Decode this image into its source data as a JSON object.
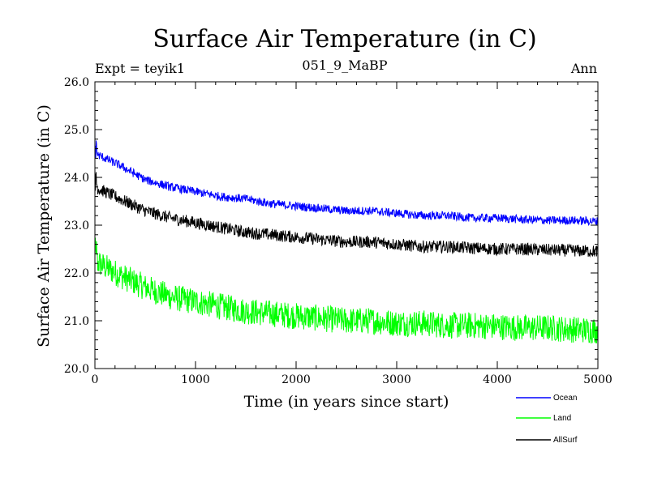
{
  "chart_data": {
    "type": "line",
    "title": "Surface Air Temperature (in C)",
    "subtitle_left": "Expt = teyik1",
    "subtitle_center": "051_9_MaBP",
    "subtitle_right": "Ann",
    "xlabel": "Time (in years since start)",
    "ylabel": "Surface Air Temperature (in C)",
    "xlim": [
      0,
      5000
    ],
    "ylim": [
      20.0,
      26.0
    ],
    "x_ticks": [
      0,
      1000,
      2000,
      3000,
      4000,
      5000
    ],
    "x_tick_labels": [
      "0",
      "1000",
      "2000",
      "3000",
      "4000",
      "5000"
    ],
    "y_ticks": [
      20.0,
      21.0,
      22.0,
      23.0,
      24.0,
      25.0,
      26.0
    ],
    "y_tick_labels": [
      "20.0",
      "21.0",
      "22.0",
      "23.0",
      "24.0",
      "25.0",
      "26.0"
    ],
    "legend_position": "bottom-right, outside plot",
    "series": [
      {
        "name": "Ocean",
        "color": "#0000ff",
        "x": [
          0,
          250,
          500,
          750,
          1000,
          1250,
          1500,
          1750,
          2000,
          2250,
          2500,
          2750,
          3000,
          3250,
          3500,
          3750,
          4000,
          4250,
          4500,
          4750,
          5000
        ],
        "values": [
          24.5,
          24.25,
          23.95,
          23.8,
          23.7,
          23.6,
          23.55,
          23.45,
          23.4,
          23.35,
          23.3,
          23.3,
          23.25,
          23.2,
          23.2,
          23.15,
          23.15,
          23.12,
          23.1,
          23.1,
          23.08
        ],
        "noise_amplitude": 0.09
      },
      {
        "name": "Land",
        "color": "#00ff00",
        "x": [
          0,
          250,
          500,
          750,
          1000,
          1250,
          1500,
          1750,
          2000,
          2250,
          2500,
          2750,
          3000,
          3250,
          3500,
          3750,
          4000,
          4250,
          4500,
          4750,
          5000
        ],
        "values": [
          22.25,
          21.95,
          21.7,
          21.5,
          21.4,
          21.3,
          21.2,
          21.15,
          21.1,
          21.05,
          21.0,
          21.0,
          20.95,
          20.95,
          20.9,
          20.9,
          20.88,
          20.85,
          20.85,
          20.82,
          20.8
        ],
        "noise_amplitude": 0.28
      },
      {
        "name": "AllSurf",
        "color": "#000000",
        "x": [
          0,
          250,
          500,
          750,
          1000,
          1250,
          1500,
          1750,
          2000,
          2250,
          2500,
          2750,
          3000,
          3250,
          3500,
          3750,
          4000,
          4250,
          4500,
          4750,
          5000
        ],
        "values": [
          23.8,
          23.55,
          23.3,
          23.15,
          23.05,
          22.95,
          22.85,
          22.8,
          22.75,
          22.7,
          22.65,
          22.65,
          22.6,
          22.55,
          22.55,
          22.52,
          22.5,
          22.5,
          22.48,
          22.47,
          22.45
        ],
        "noise_amplitude": 0.13
      }
    ]
  }
}
